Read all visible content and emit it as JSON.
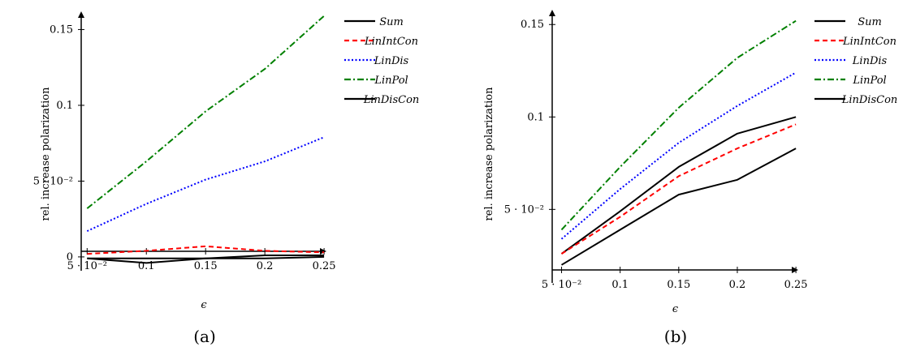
{
  "chart_data": [
    {
      "type": "line",
      "caption": "(a)",
      "xlabel": "ϵ",
      "ylabel": "rel. increase polarization",
      "x": [
        0.05,
        0.1,
        0.15,
        0.2,
        0.25
      ],
      "x_tick_labels": [
        "5 · 10⁻²",
        "0.1",
        "0.15",
        "0.2",
        "0.25"
      ],
      "xlim": [
        0.045,
        0.252
      ],
      "ylim": [
        -0.007,
        0.162
      ],
      "y_ticks": [
        0,
        0.05,
        0.1,
        0.15
      ],
      "y_tick_labels": [
        "0",
        "5 · 10⁻²",
        "0.1",
        "0.15"
      ],
      "legend_position": "top-right outside",
      "series": [
        {
          "name": "Sum",
          "color": "#000000",
          "dash": "solid",
          "values": [
            -0.001,
            -0.001,
            -0.001,
            0.001,
            0.001
          ]
        },
        {
          "name": "LinIntCon",
          "color": "#ff0000",
          "dash": "dashed",
          "values": [
            0.002,
            0.004,
            0.007,
            0.004,
            0.003
          ]
        },
        {
          "name": "LinDis",
          "color": "#0000ff",
          "dash": "dotted",
          "values": [
            0.017,
            0.035,
            0.051,
            0.063,
            0.079
          ]
        },
        {
          "name": "LinPol",
          "color": "#008000",
          "dash": "dashdot",
          "values": [
            0.032,
            0.063,
            0.096,
            0.124,
            0.159
          ]
        },
        {
          "name": "LinDisCon",
          "color": "#000000",
          "dash": "solid",
          "values": [
            -0.001,
            -0.004,
            -0.001,
            -0.001,
            0.0
          ]
        }
      ]
    },
    {
      "type": "line",
      "caption": "(b)",
      "xlabel": "ϵ",
      "ylabel": "rel. increase polarization",
      "x": [
        0.05,
        0.1,
        0.15,
        0.2,
        0.25
      ],
      "x_tick_labels": [
        "5 · 10⁻²",
        "0.1",
        "0.15",
        "0.2",
        "0.25"
      ],
      "xlim": [
        0.042,
        0.252
      ],
      "ylim": [
        0.012,
        0.158
      ],
      "y_ticks": [
        0.05,
        0.1,
        0.15
      ],
      "y_tick_labels": [
        "5 · 10⁻²",
        "0.1",
        "0.15"
      ],
      "legend_position": "top-right outside",
      "series": [
        {
          "name": "Sum",
          "color": "#000000",
          "dash": "solid",
          "values": [
            0.026,
            0.049,
            0.073,
            0.091,
            0.1
          ]
        },
        {
          "name": "LinIntCon",
          "color": "#ff0000",
          "dash": "dashed",
          "values": [
            0.026,
            0.046,
            0.068,
            0.083,
            0.096
          ]
        },
        {
          "name": "LinDis",
          "color": "#0000ff",
          "dash": "dotted",
          "values": [
            0.034,
            0.061,
            0.086,
            0.106,
            0.124
          ]
        },
        {
          "name": "LinPol",
          "color": "#008000",
          "dash": "dashdot",
          "values": [
            0.039,
            0.073,
            0.105,
            0.132,
            0.152
          ]
        },
        {
          "name": "LinDisCon",
          "color": "#000000",
          "dash": "solid",
          "values": [
            0.02,
            0.039,
            0.058,
            0.066,
            0.083
          ]
        }
      ]
    }
  ]
}
